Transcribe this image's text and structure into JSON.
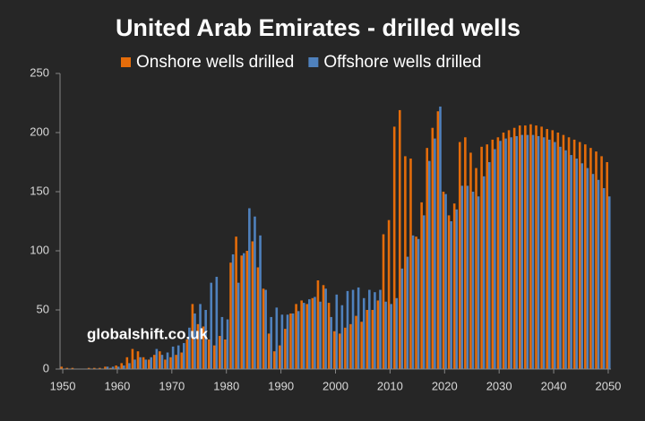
{
  "chart_data": {
    "type": "bar",
    "title": "United Arab Emirates - drilled wells",
    "annotation": "globalshift.co.uk",
    "legend": "top",
    "grid": false,
    "x": [
      1950,
      1951,
      1952,
      1953,
      1954,
      1955,
      1956,
      1957,
      1958,
      1959,
      1960,
      1961,
      1962,
      1963,
      1964,
      1965,
      1966,
      1967,
      1968,
      1969,
      1970,
      1971,
      1972,
      1973,
      1974,
      1975,
      1976,
      1977,
      1978,
      1979,
      1980,
      1981,
      1982,
      1983,
      1984,
      1985,
      1986,
      1987,
      1988,
      1989,
      1990,
      1991,
      1992,
      1993,
      1994,
      1995,
      1996,
      1997,
      1998,
      1999,
      2000,
      2001,
      2002,
      2003,
      2004,
      2005,
      2006,
      2007,
      2008,
      2009,
      2010,
      2011,
      2012,
      2013,
      2014,
      2015,
      2016,
      2017,
      2018,
      2019,
      2020,
      2021,
      2022,
      2023,
      2024,
      2025,
      2026,
      2027,
      2028,
      2029,
      2030,
      2031,
      2032,
      2033,
      2034,
      2035,
      2036,
      2037,
      2038,
      2039,
      2040,
      2041,
      2042,
      2043,
      2044,
      2045,
      2046,
      2047,
      2048,
      2049,
      2050
    ],
    "xlim": [
      1949.5,
      2050.5
    ],
    "xticks": [
      1950,
      1960,
      1970,
      1980,
      1990,
      2000,
      2010,
      2020,
      2030,
      2040,
      2050
    ],
    "ylim": [
      0,
      250
    ],
    "yticks": [
      0,
      50,
      100,
      150,
      200,
      250
    ],
    "series": [
      {
        "name": "Onshore wells drilled",
        "color": "#e46c0a",
        "values": [
          2,
          1,
          1,
          0,
          0,
          1,
          1,
          1,
          2,
          1,
          3,
          5,
          10,
          17,
          15,
          10,
          8,
          12,
          15,
          8,
          10,
          12,
          14,
          25,
          55,
          38,
          36,
          25,
          20,
          28,
          25,
          90,
          112,
          96,
          100,
          108,
          86,
          68,
          30,
          15,
          20,
          34,
          47,
          55,
          58,
          55,
          60,
          75,
          71,
          56,
          32,
          30,
          35,
          38,
          45,
          40,
          50,
          50,
          58,
          114,
          126,
          205,
          219,
          180,
          178,
          112,
          141,
          187,
          204,
          218,
          150,
          130,
          140,
          192,
          196,
          183,
          170,
          188,
          190,
          194,
          196,
          200,
          202,
          204,
          206,
          206,
          207,
          206,
          205,
          203,
          202,
          200,
          198,
          196,
          194,
          192,
          190,
          187,
          184,
          180,
          175
        ]
      },
      {
        "name": "Offshore wells drilled",
        "color": "#4f81bd",
        "values": [
          0,
          0,
          0,
          0,
          0,
          0,
          0,
          0,
          2,
          2,
          2,
          3,
          5,
          8,
          10,
          8,
          10,
          17,
          12,
          14,
          19,
          20,
          22,
          35,
          47,
          55,
          50,
          73,
          78,
          44,
          42,
          97,
          73,
          98,
          136,
          129,
          113,
          67,
          44,
          52,
          46,
          46,
          47,
          49,
          56,
          59,
          61,
          57,
          68,
          44,
          63,
          54,
          66,
          67,
          69,
          60,
          67,
          65,
          67,
          57,
          55,
          60,
          85,
          95,
          113,
          110,
          130,
          176,
          195,
          222,
          148,
          125,
          135,
          155,
          155,
          150,
          146,
          163,
          175,
          186,
          193,
          195,
          196,
          197,
          198,
          198,
          198,
          197,
          196,
          194,
          192,
          188,
          185,
          181,
          178,
          174,
          170,
          165,
          160,
          153,
          146
        ]
      }
    ]
  }
}
